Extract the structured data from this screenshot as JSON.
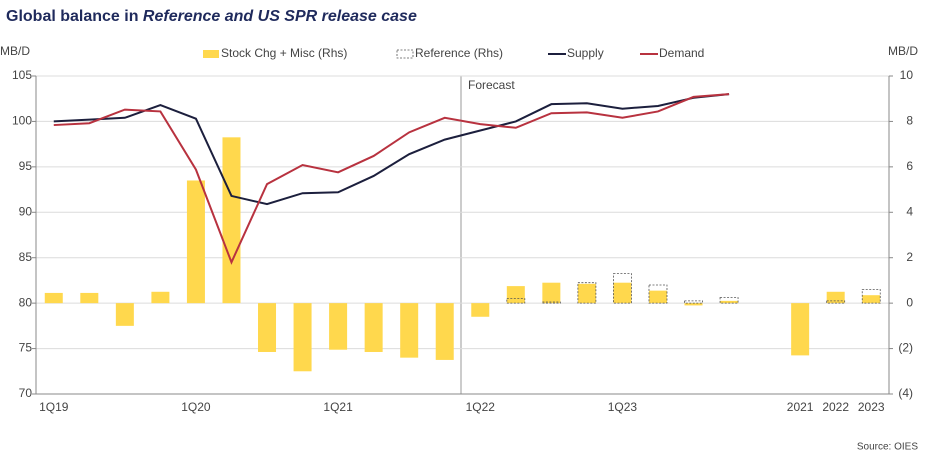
{
  "chart_data": {
    "type": "bar-line",
    "title_parts": [
      "Global balance in ",
      "Reference and US SPR release case"
    ],
    "y_unit": "MB/D",
    "y2_unit": "MB/D",
    "annotation": "Forecast",
    "source": "Source: OIES",
    "categories": [
      "1Q19",
      null,
      null,
      null,
      "1Q20",
      null,
      null,
      null,
      "1Q21",
      null,
      null,
      null,
      "1Q22",
      null,
      null,
      null,
      "1Q23",
      null,
      null,
      null,
      null,
      "2021",
      "2022",
      "2023"
    ],
    "ylim": [
      70,
      105
    ],
    "yticks": [
      70,
      75,
      80,
      85,
      90,
      95,
      100,
      105
    ],
    "y2lim": [
      -4,
      10
    ],
    "y2ticks": [
      {
        "value": -4,
        "label": "(4)"
      },
      {
        "value": -2,
        "label": "(2)"
      },
      0,
      2,
      4,
      6,
      8,
      10
    ],
    "grid": true,
    "series": [
      {
        "name": "Stock Chg + Misc (Rhs)",
        "type": "bar",
        "axis": "y2",
        "color": "#ffd84d",
        "values": [
          0.45,
          0.45,
          -1.0,
          0.5,
          5.4,
          7.3,
          -2.15,
          -3.0,
          -2.05,
          -2.15,
          -2.4,
          -2.5,
          -0.6,
          0.75,
          0.9,
          0.85,
          0.9,
          0.55,
          -0.1,
          0.1,
          null,
          -2.3,
          0.5,
          0.35
        ]
      },
      {
        "name": "Reference (Rhs)",
        "type": "dashed-bar",
        "axis": "y2",
        "color": "#555555",
        "values": [
          null,
          null,
          null,
          null,
          null,
          null,
          null,
          null,
          null,
          null,
          null,
          null,
          null,
          0.2,
          0.05,
          0.9,
          1.3,
          0.8,
          0.1,
          0.25,
          null,
          null,
          0.1,
          0.6
        ]
      },
      {
        "name": "Supply",
        "type": "line",
        "color": "#1c1f3d",
        "values": [
          100.0,
          100.2,
          100.4,
          101.8,
          100.3,
          91.8,
          90.9,
          92.1,
          92.2,
          94.0,
          96.4,
          98.0,
          99.0,
          100.0,
          101.9,
          102.0,
          101.4,
          101.7,
          102.6,
          103.0,
          null,
          null,
          null,
          null
        ]
      },
      {
        "name": "Demand",
        "type": "line",
        "color": "#b8323f",
        "values": [
          99.6,
          99.8,
          101.3,
          101.1,
          94.7,
          84.5,
          93.1,
          95.2,
          94.4,
          96.2,
          98.8,
          100.4,
          99.7,
          99.3,
          100.9,
          101.0,
          100.4,
          101.1,
          102.7,
          103.0,
          null,
          null,
          null,
          null
        ]
      }
    ]
  }
}
